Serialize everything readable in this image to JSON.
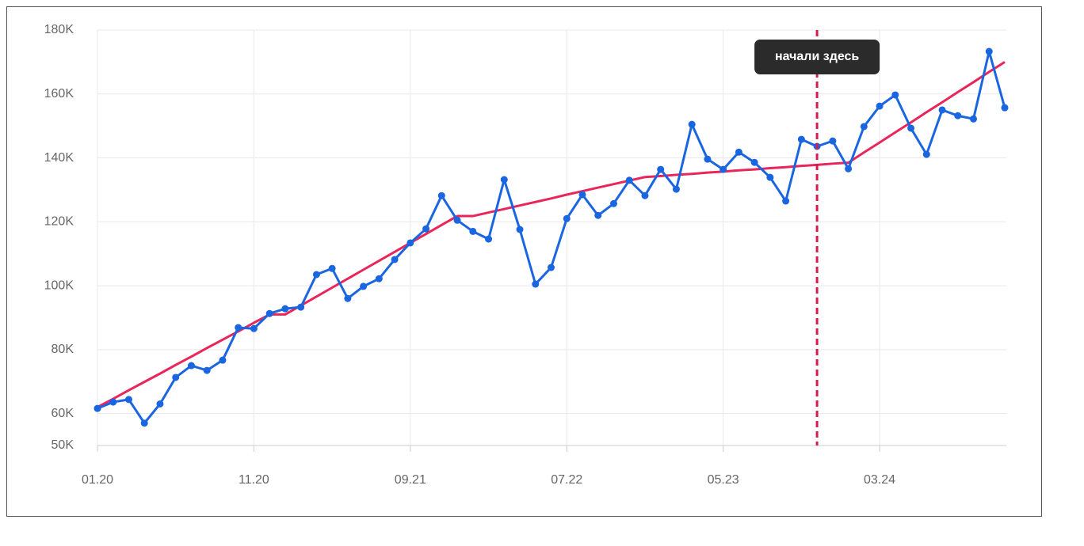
{
  "chart_data": {
    "type": "line",
    "categories": [
      "01.20",
      null,
      null,
      null,
      null,
      null,
      null,
      null,
      null,
      null,
      "11.20",
      null,
      null,
      null,
      null,
      null,
      null,
      null,
      null,
      null,
      "09.21",
      null,
      null,
      null,
      null,
      null,
      null,
      null,
      null,
      null,
      "07.22",
      null,
      null,
      null,
      null,
      null,
      null,
      null,
      null,
      null,
      "05.23",
      null,
      null,
      null,
      null,
      null,
      null,
      null,
      null,
      null,
      "03.24",
      null,
      null,
      null,
      null,
      null,
      null,
      null,
      null
    ],
    "series": [
      {
        "name": null,
        "color": "#1a66e0",
        "markers": true,
        "values": [
          61600,
          63600,
          64400,
          57000,
          63000,
          71300,
          75000,
          73500,
          76700,
          86900,
          86600,
          91300,
          92800,
          93300,
          103500,
          105400,
          96000,
          99800,
          102200,
          108200,
          113400,
          117800,
          128200,
          120500,
          117000,
          114600,
          133200,
          117600,
          100500,
          105700,
          121000,
          128500,
          122000,
          125700,
          133000,
          128200,
          136400,
          130200,
          150500,
          139600,
          136400,
          141800,
          138600,
          133900,
          126500,
          145800,
          143600,
          145300,
          136600,
          149800,
          156200,
          159700,
          149300,
          141100,
          155000,
          153200,
          152200,
          173300,
          155700
        ]
      },
      {
        "name": null,
        "color": "#e8265a",
        "markers": false,
        "values": [
          62000,
          64600,
          67300,
          69900,
          72500,
          75200,
          77800,
          80500,
          83100,
          85700,
          88400,
          91000,
          91000,
          93800,
          96600,
          99400,
          102200,
          105000,
          107800,
          110600,
          113400,
          116200,
          119000,
          121800,
          121800,
          122900,
          124000,
          125100,
          126200,
          127300,
          128500,
          129600,
          130700,
          131800,
          132900,
          134000,
          134300,
          134700,
          135000,
          135400,
          135700,
          136100,
          136400,
          136800,
          137100,
          137500,
          137800,
          138200,
          138500,
          141700,
          144800,
          148000,
          151100,
          154300,
          157400,
          160600,
          163700,
          166900,
          170000
        ]
      }
    ],
    "ylim": [
      50000,
      180000
    ],
    "yticks": [
      {
        "value": 50000,
        "label": "50K"
      },
      {
        "value": 60000,
        "label": "60K"
      },
      {
        "value": 80000,
        "label": "80K"
      },
      {
        "value": 100000,
        "label": "100K"
      },
      {
        "value": 120000,
        "label": "120K"
      },
      {
        "value": 140000,
        "label": "140K"
      },
      {
        "value": 160000,
        "label": "160K"
      },
      {
        "value": 180000,
        "label": "180K"
      }
    ],
    "grid": true,
    "annotation": {
      "text": "начали здесь",
      "category_index": 46,
      "color": "#d81b4f"
    }
  }
}
